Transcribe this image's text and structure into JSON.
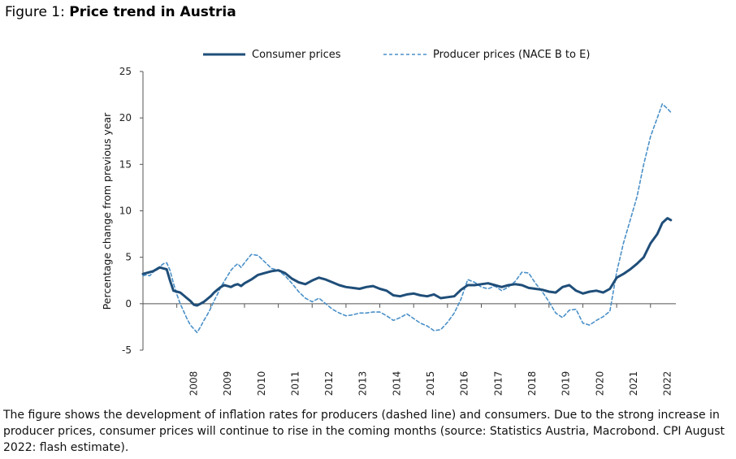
{
  "figure": {
    "prefix": "Figure 1: ",
    "title": "Price trend in Austria"
  },
  "caption": "The figure shows the development of inflation rates for producers (dashed line) and consumers. Due to the strong increase in producer prices, consumer prices will continue to rise in the coming months (source: Statistics Austria, Macrobond. CPI August 2022: flash estimate).",
  "chart_data": {
    "type": "line",
    "ylabel": "Percentage change from previous year",
    "xlabel": "",
    "ylim": [
      -5,
      25
    ],
    "yticks": [
      -5,
      0,
      5,
      10,
      15,
      20,
      25
    ],
    "xlim": [
      2007.0,
      2022.75
    ],
    "xticks": [
      "2008",
      "2009",
      "2010",
      "2011",
      "2012",
      "2013",
      "2014",
      "2015",
      "2016",
      "2017",
      "2018",
      "2019",
      "2020",
      "2021",
      "2022"
    ],
    "legend_position": "top",
    "grid": false,
    "series": [
      {
        "name": "Consumer prices",
        "style": "solid",
        "color": "#1f4e79",
        "x": [
          2007.0,
          2007.1,
          2007.2,
          2007.3,
          2007.4,
          2007.5,
          2007.6,
          2007.7,
          2007.8,
          2007.9,
          2008.0,
          2008.1,
          2008.2,
          2008.3,
          2008.4,
          2008.5,
          2008.6,
          2008.7,
          2008.8,
          2008.9,
          2009.0,
          2009.1,
          2009.2,
          2009.3,
          2009.4,
          2009.5,
          2009.6,
          2009.7,
          2009.8,
          2009.9,
          2010.0,
          2010.2,
          2010.4,
          2010.6,
          2010.8,
          2011.0,
          2011.2,
          2011.4,
          2011.6,
          2011.8,
          2012.0,
          2012.2,
          2012.4,
          2012.6,
          2012.8,
          2013.0,
          2013.2,
          2013.4,
          2013.6,
          2013.8,
          2014.0,
          2014.2,
          2014.4,
          2014.6,
          2014.8,
          2015.0,
          2015.2,
          2015.4,
          2015.6,
          2015.8,
          2016.0,
          2016.2,
          2016.4,
          2016.6,
          2016.8,
          2017.0,
          2017.2,
          2017.4,
          2017.6,
          2017.8,
          2018.0,
          2018.2,
          2018.4,
          2018.6,
          2018.8,
          2019.0,
          2019.2,
          2019.4,
          2019.6,
          2019.8,
          2020.0,
          2020.2,
          2020.4,
          2020.6,
          2020.8,
          2021.0,
          2021.2,
          2021.4,
          2021.6,
          2021.8,
          2022.0,
          2022.2,
          2022.35,
          2022.5,
          2022.6
        ],
        "y": [
          3.2,
          3.3,
          3.4,
          3.5,
          3.7,
          3.9,
          3.8,
          3.7,
          2.5,
          1.4,
          1.3,
          1.2,
          0.9,
          0.6,
          0.3,
          -0.1,
          -0.2,
          0.0,
          0.2,
          0.5,
          0.8,
          1.2,
          1.5,
          1.8,
          2.0,
          1.9,
          1.8,
          2.0,
          2.1,
          1.9,
          2.2,
          2.6,
          3.1,
          3.3,
          3.5,
          3.6,
          3.3,
          2.7,
          2.3,
          2.1,
          2.5,
          2.8,
          2.6,
          2.3,
          2.0,
          1.8,
          1.7,
          1.6,
          1.8,
          1.9,
          1.6,
          1.4,
          0.9,
          0.8,
          1.0,
          1.1,
          0.9,
          0.8,
          1.0,
          0.6,
          0.7,
          0.8,
          1.5,
          2.0,
          2.0,
          2.1,
          2.2,
          2.0,
          1.8,
          2.0,
          2.1,
          2.0,
          1.7,
          1.6,
          1.5,
          1.3,
          1.2,
          1.8,
          2.0,
          1.4,
          1.1,
          1.3,
          1.4,
          1.2,
          1.6,
          2.8,
          3.2,
          3.7,
          4.3,
          5.0,
          6.5,
          7.5,
          8.7,
          9.2,
          9.0
        ]
      },
      {
        "name": "Producer prices (NACE B to E)",
        "style": "dashed",
        "color": "#4a90c8",
        "x": [
          2007.0,
          2007.1,
          2007.2,
          2007.3,
          2007.4,
          2007.5,
          2007.6,
          2007.7,
          2007.8,
          2007.9,
          2008.0,
          2008.1,
          2008.2,
          2008.3,
          2008.4,
          2008.5,
          2008.6,
          2008.7,
          2008.8,
          2008.9,
          2009.0,
          2009.1,
          2009.2,
          2009.3,
          2009.4,
          2009.5,
          2009.6,
          2009.7,
          2009.8,
          2009.9,
          2010.0,
          2010.2,
          2010.4,
          2010.6,
          2010.8,
          2011.0,
          2011.2,
          2011.4,
          2011.6,
          2011.8,
          2012.0,
          2012.2,
          2012.4,
          2012.6,
          2012.8,
          2013.0,
          2013.2,
          2013.4,
          2013.6,
          2013.8,
          2014.0,
          2014.2,
          2014.4,
          2014.6,
          2014.8,
          2015.0,
          2015.2,
          2015.4,
          2015.6,
          2015.8,
          2016.0,
          2016.2,
          2016.4,
          2016.6,
          2016.8,
          2017.0,
          2017.2,
          2017.4,
          2017.6,
          2017.8,
          2018.0,
          2018.2,
          2018.4,
          2018.6,
          2018.8,
          2019.0,
          2019.2,
          2019.4,
          2019.6,
          2019.8,
          2020.0,
          2020.2,
          2020.4,
          2020.6,
          2020.8,
          2021.0,
          2021.2,
          2021.4,
          2021.6,
          2021.8,
          2022.0,
          2022.2,
          2022.35,
          2022.5,
          2022.6
        ],
        "y": [
          3.0,
          3.1,
          3.0,
          3.4,
          3.8,
          4.0,
          4.3,
          4.4,
          3.6,
          2.2,
          1.0,
          0.0,
          -0.8,
          -1.6,
          -2.3,
          -2.7,
          -3.1,
          -2.5,
          -1.8,
          -1.2,
          -0.5,
          0.3,
          1.0,
          1.8,
          2.4,
          3.0,
          3.6,
          4.0,
          4.3,
          3.9,
          4.4,
          5.3,
          5.2,
          4.5,
          3.8,
          3.6,
          3.0,
          2.2,
          1.3,
          0.6,
          0.2,
          0.6,
          0.0,
          -0.6,
          -1.0,
          -1.3,
          -1.2,
          -1.0,
          -1.0,
          -0.9,
          -0.9,
          -1.3,
          -1.8,
          -1.5,
          -1.1,
          -1.6,
          -2.1,
          -2.4,
          -2.9,
          -2.8,
          -2.0,
          -1.0,
          0.5,
          2.6,
          2.3,
          1.8,
          1.6,
          1.9,
          1.4,
          1.8,
          2.4,
          3.4,
          3.3,
          2.2,
          1.3,
          0.2,
          -1.0,
          -1.5,
          -0.7,
          -0.6,
          -2.1,
          -2.3,
          -1.8,
          -1.4,
          -0.8,
          3.4,
          6.5,
          9.0,
          11.5,
          15.0,
          18.0,
          20.0,
          21.5,
          21.0,
          20.6
        ]
      }
    ]
  }
}
